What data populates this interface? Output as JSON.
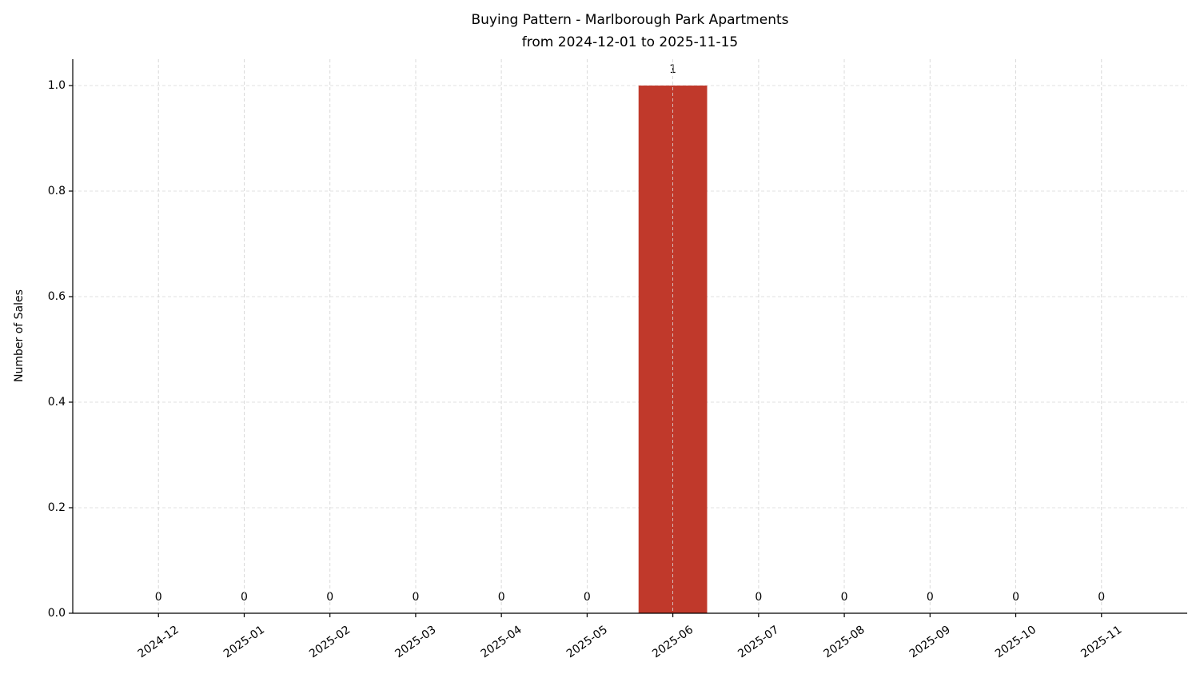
{
  "chart_data": {
    "type": "bar",
    "title": "Buying Pattern - Marlborough Park Apartments",
    "subtitle": "from 2024-12-01 to 2025-11-15",
    "y_label": "Number of Sales",
    "categories": [
      "2024-12",
      "2025-01",
      "2025-02",
      "2025-03",
      "2025-04",
      "2025-05",
      "2025-06",
      "2025-07",
      "2025-08",
      "2025-09",
      "2025-10",
      "2025-11"
    ],
    "values": [
      0,
      0,
      0,
      0,
      0,
      0,
      1,
      0,
      0,
      0,
      0,
      0
    ],
    "color": "#c0392b",
    "ylim": [
      0,
      1.05
    ],
    "yticks": [
      {
        "value": 0,
        "label": "0.0"
      },
      0.2,
      0.4,
      0.6,
      0.8,
      {
        "value": 1,
        "label": "1.0"
      }
    ],
    "grid": true
  }
}
